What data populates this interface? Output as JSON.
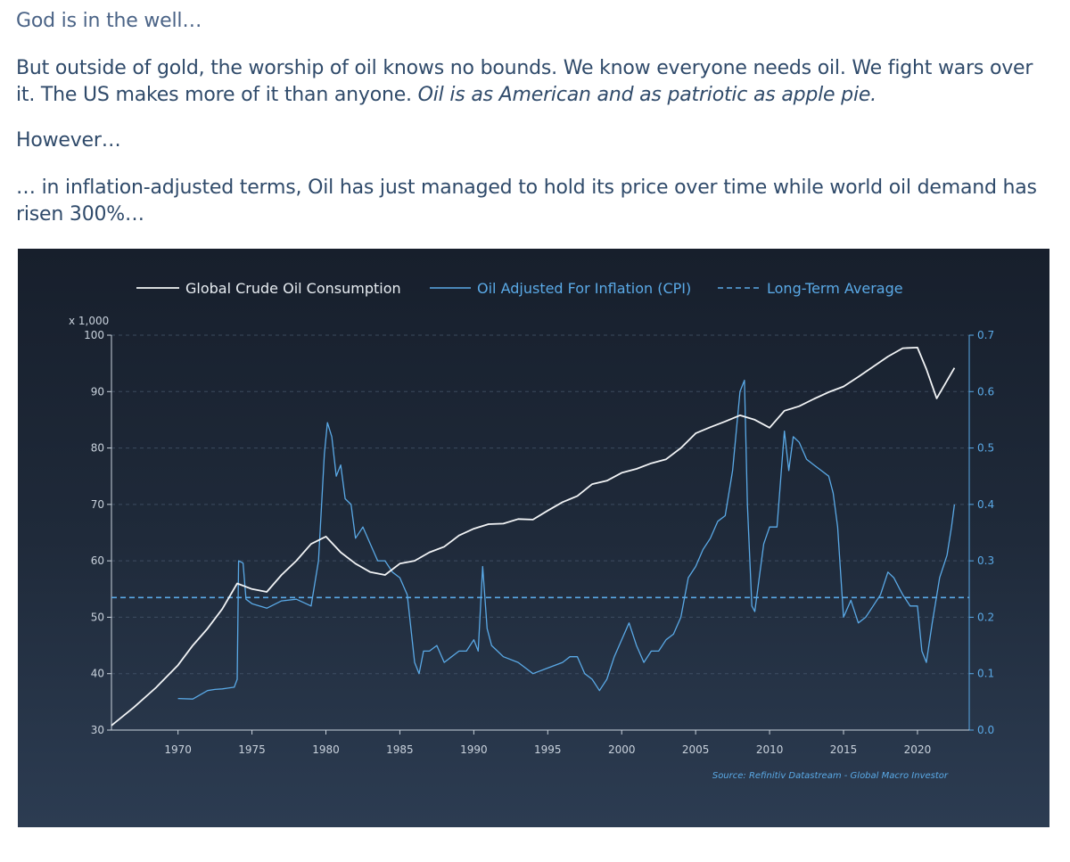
{
  "article": {
    "p1": "God is in the well…",
    "p2_a": "But outside of gold, the worship of oil knows no bounds. We know everyone needs oil. We fight wars over it. The US makes more of it than anyone. ",
    "p2_b": "Oil is as American and as patriotic as apple pie.",
    "p3": "However…",
    "p4": "… in inflation-adjusted terms, Oil has just managed to hold its price over time while world oil demand has risen 300%…"
  },
  "colors": {
    "consumption": "#f2f4f6",
    "oil_cpi": "#5aa9e6",
    "average": "#5aa9e6",
    "grid": "#4a5a70",
    "axis_text": "#c9d2dc",
    "right_axis_text": "#5aa9e6"
  },
  "chart_data": {
    "type": "line",
    "legend": [
      {
        "name": "Global Crude Oil Consumption",
        "style": "solid-white"
      },
      {
        "name": "Oil Adjusted For Inflation (CPI)",
        "style": "solid-blue"
      },
      {
        "name": "Long-Term Average",
        "style": "dashed-blue"
      }
    ],
    "legend_position": "top-center",
    "grid": true,
    "left_axis": {
      "unit_label": "x 1,000",
      "min": 30,
      "max": 100,
      "ticks": [
        30,
        40,
        50,
        60,
        70,
        80,
        90,
        100
      ]
    },
    "right_axis": {
      "min": 0.0,
      "max": 0.7,
      "ticks": [
        "0.0",
        "0.1",
        "0.2",
        "0.3",
        "0.4",
        "0.5",
        "0.6",
        "0.7"
      ]
    },
    "x_axis": {
      "min": 1965.5,
      "max": 2023.5,
      "ticks": [
        1970,
        1975,
        1980,
        1985,
        1990,
        1995,
        2000,
        2005,
        2010,
        2015,
        2020
      ]
    },
    "source": "Source: Refinitiv Datastream - Global Macro Investor",
    "series": [
      {
        "name": "Global Crude Oil Consumption",
        "axis": "left",
        "x": [
          1965.5,
          1967,
          1968.5,
          1970,
          1971,
          1972,
          1973,
          1974,
          1975,
          1976,
          1977,
          1978,
          1979,
          1980,
          1981,
          1982,
          1983,
          1984,
          1985,
          1986,
          1987,
          1988,
          1989,
          1990,
          1991,
          1992,
          1993,
          1994,
          1995,
          1996,
          1997,
          1998,
          1999,
          2000,
          2001,
          2002,
          2003,
          2004,
          2005,
          2006,
          2007,
          2008,
          2009,
          2010,
          2011,
          2012,
          2013,
          2014,
          2015,
          2016,
          2017,
          2018,
          2019,
          2020,
          2020.6,
          2021.3,
          2022.5
        ],
        "values": [
          30.8,
          34,
          37.5,
          41.5,
          45,
          48,
          51.5,
          56,
          55,
          54.5,
          57.5,
          60,
          63,
          64.3,
          61.5,
          59.5,
          58,
          57.5,
          59.5,
          60,
          61.5,
          62.5,
          64.5,
          65.7,
          66.5,
          66.6,
          67.4,
          67.3,
          68.9,
          70.4,
          71.5,
          73.6,
          74.2,
          75.6,
          76.3,
          77.3,
          78,
          80,
          82.6,
          83.7,
          84.7,
          85.8,
          85,
          83.6,
          86.6,
          87.4,
          88.7,
          89.9,
          90.9,
          92.6,
          94.4,
          96.2,
          97.7,
          97.8,
          94,
          88.8,
          94.2
        ]
      },
      {
        "name": "Oil Adjusted For Inflation (CPI)",
        "axis": "right",
        "x": [
          1970,
          1971,
          1972,
          1972.5,
          1973,
          1973.8,
          1974.0,
          1974.1,
          1974.4,
          1974.6,
          1975,
          1976,
          1977,
          1978,
          1979,
          1979.5,
          1979.9,
          1980.1,
          1980.4,
          1980.7,
          1981,
          1981.3,
          1981.7,
          1982,
          1982.5,
          1983,
          1983.5,
          1984,
          1984.5,
          1985,
          1985.5,
          1986.0,
          1986.3,
          1986.6,
          1987,
          1987.5,
          1988,
          1988.5,
          1989,
          1989.5,
          1990,
          1990.3,
          1990.6,
          1990.9,
          1991.2,
          1991.6,
          1992,
          1993,
          1993.5,
          1994,
          1995,
          1996,
          1996.5,
          1997,
          1997.5,
          1998,
          1998.5,
          1999,
          1999.5,
          2000,
          2000.5,
          2001,
          2001.5,
          2002,
          2002.5,
          2003,
          2003.5,
          2004,
          2004.5,
          2005,
          2005.5,
          2006,
          2006.5,
          2007,
          2007.5,
          2008,
          2008.3,
          2008.5,
          2008.8,
          2009,
          2009.3,
          2009.6,
          2010,
          2010.5,
          2011,
          2011.3,
          2011.6,
          2012,
          2012.5,
          2013,
          2013.5,
          2014,
          2014.3,
          2014.6,
          2015,
          2015.5,
          2016,
          2016.5,
          2017,
          2017.5,
          2018,
          2018.4,
          2018.8,
          2019,
          2019.5,
          2020,
          2020.3,
          2020.6,
          2021,
          2021.5,
          2022,
          2022.3,
          2022.5
        ],
        "values": [
          0.056,
          0.055,
          0.07,
          0.072,
          0.073,
          0.076,
          0.09,
          0.3,
          0.296,
          0.232,
          0.224,
          0.216,
          0.229,
          0.232,
          0.22,
          0.3,
          0.49,
          0.545,
          0.52,
          0.45,
          0.47,
          0.41,
          0.4,
          0.34,
          0.36,
          0.33,
          0.3,
          0.3,
          0.28,
          0.27,
          0.24,
          0.12,
          0.1,
          0.14,
          0.14,
          0.15,
          0.12,
          0.13,
          0.14,
          0.14,
          0.16,
          0.14,
          0.29,
          0.18,
          0.15,
          0.14,
          0.13,
          0.12,
          0.11,
          0.1,
          0.11,
          0.12,
          0.13,
          0.13,
          0.1,
          0.09,
          0.07,
          0.09,
          0.13,
          0.16,
          0.19,
          0.15,
          0.12,
          0.14,
          0.14,
          0.16,
          0.17,
          0.2,
          0.27,
          0.29,
          0.32,
          0.34,
          0.37,
          0.38,
          0.46,
          0.6,
          0.62,
          0.4,
          0.22,
          0.21,
          0.27,
          0.33,
          0.36,
          0.36,
          0.53,
          0.46,
          0.52,
          0.51,
          0.48,
          0.47,
          0.46,
          0.45,
          0.42,
          0.36,
          0.2,
          0.23,
          0.19,
          0.2,
          0.22,
          0.24,
          0.28,
          0.27,
          0.25,
          0.24,
          0.22,
          0.22,
          0.14,
          0.12,
          0.19,
          0.27,
          0.31,
          0.36,
          0.4
        ]
      },
      {
        "name": "Long-Term Average",
        "axis": "right",
        "x": [
          1965.5,
          2023.5
        ],
        "values": [
          0.235,
          0.235
        ]
      }
    ]
  }
}
